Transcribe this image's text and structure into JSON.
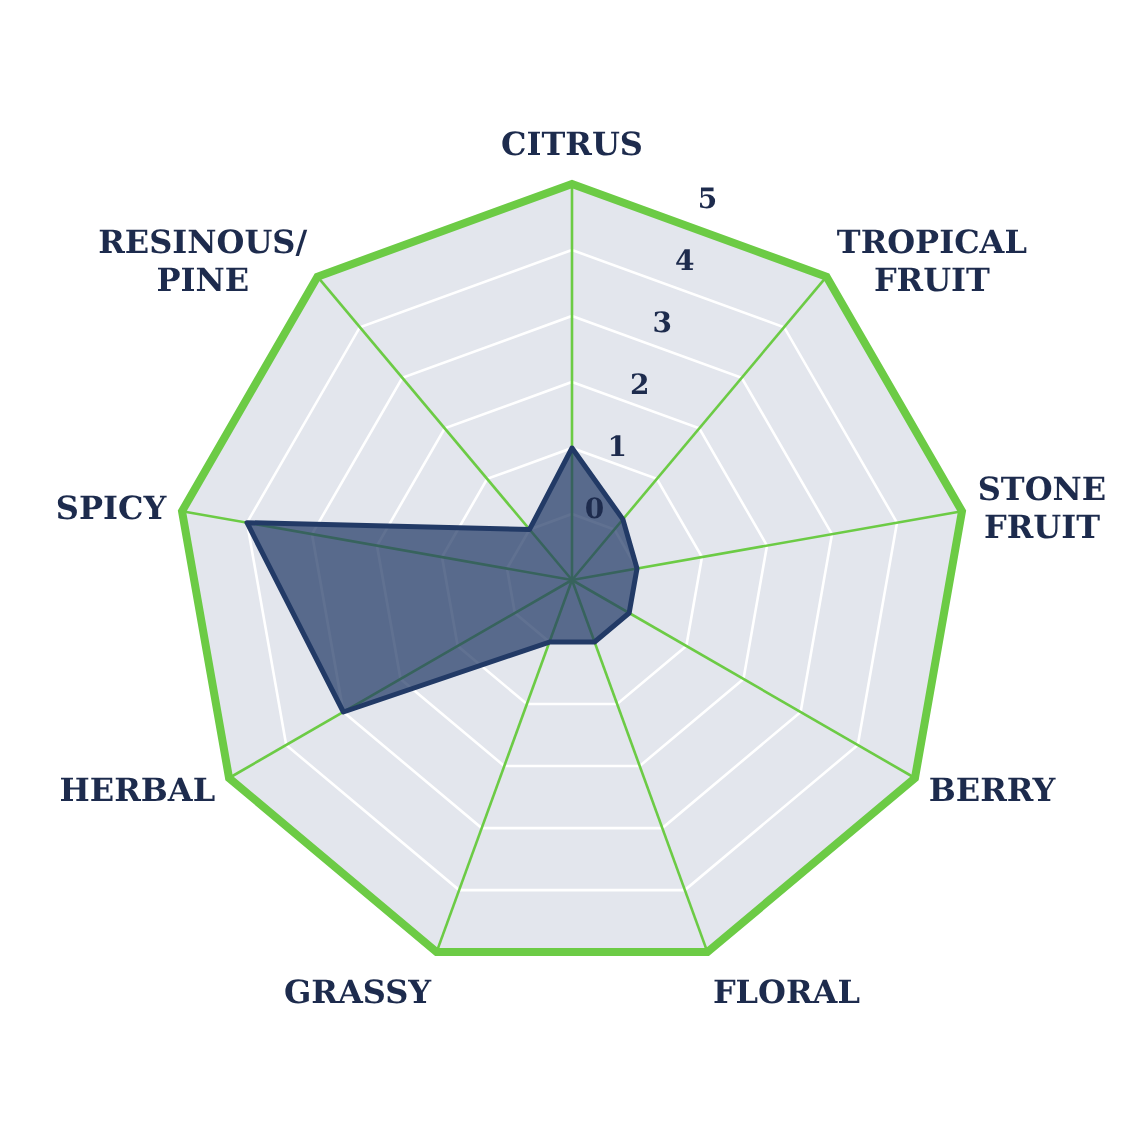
{
  "chart_data": {
    "type": "radar",
    "categories": [
      "CITRUS",
      "TROPICAL\nFRUIT",
      "STONE\nFRUIT",
      "BERRY",
      "FLORAL",
      "GRASSY",
      "HERBAL",
      "SPICY",
      "RESINOUS/\nPINE"
    ],
    "series": [
      {
        "color": "#223a66",
        "values": [
          1,
          0.2,
          0,
          0,
          0,
          0,
          3,
          4,
          0
        ]
      }
    ],
    "ylim": [
      -1,
      5
    ],
    "yticks": [
      0,
      1,
      2,
      3,
      4,
      5
    ],
    "grid": true
  }
}
